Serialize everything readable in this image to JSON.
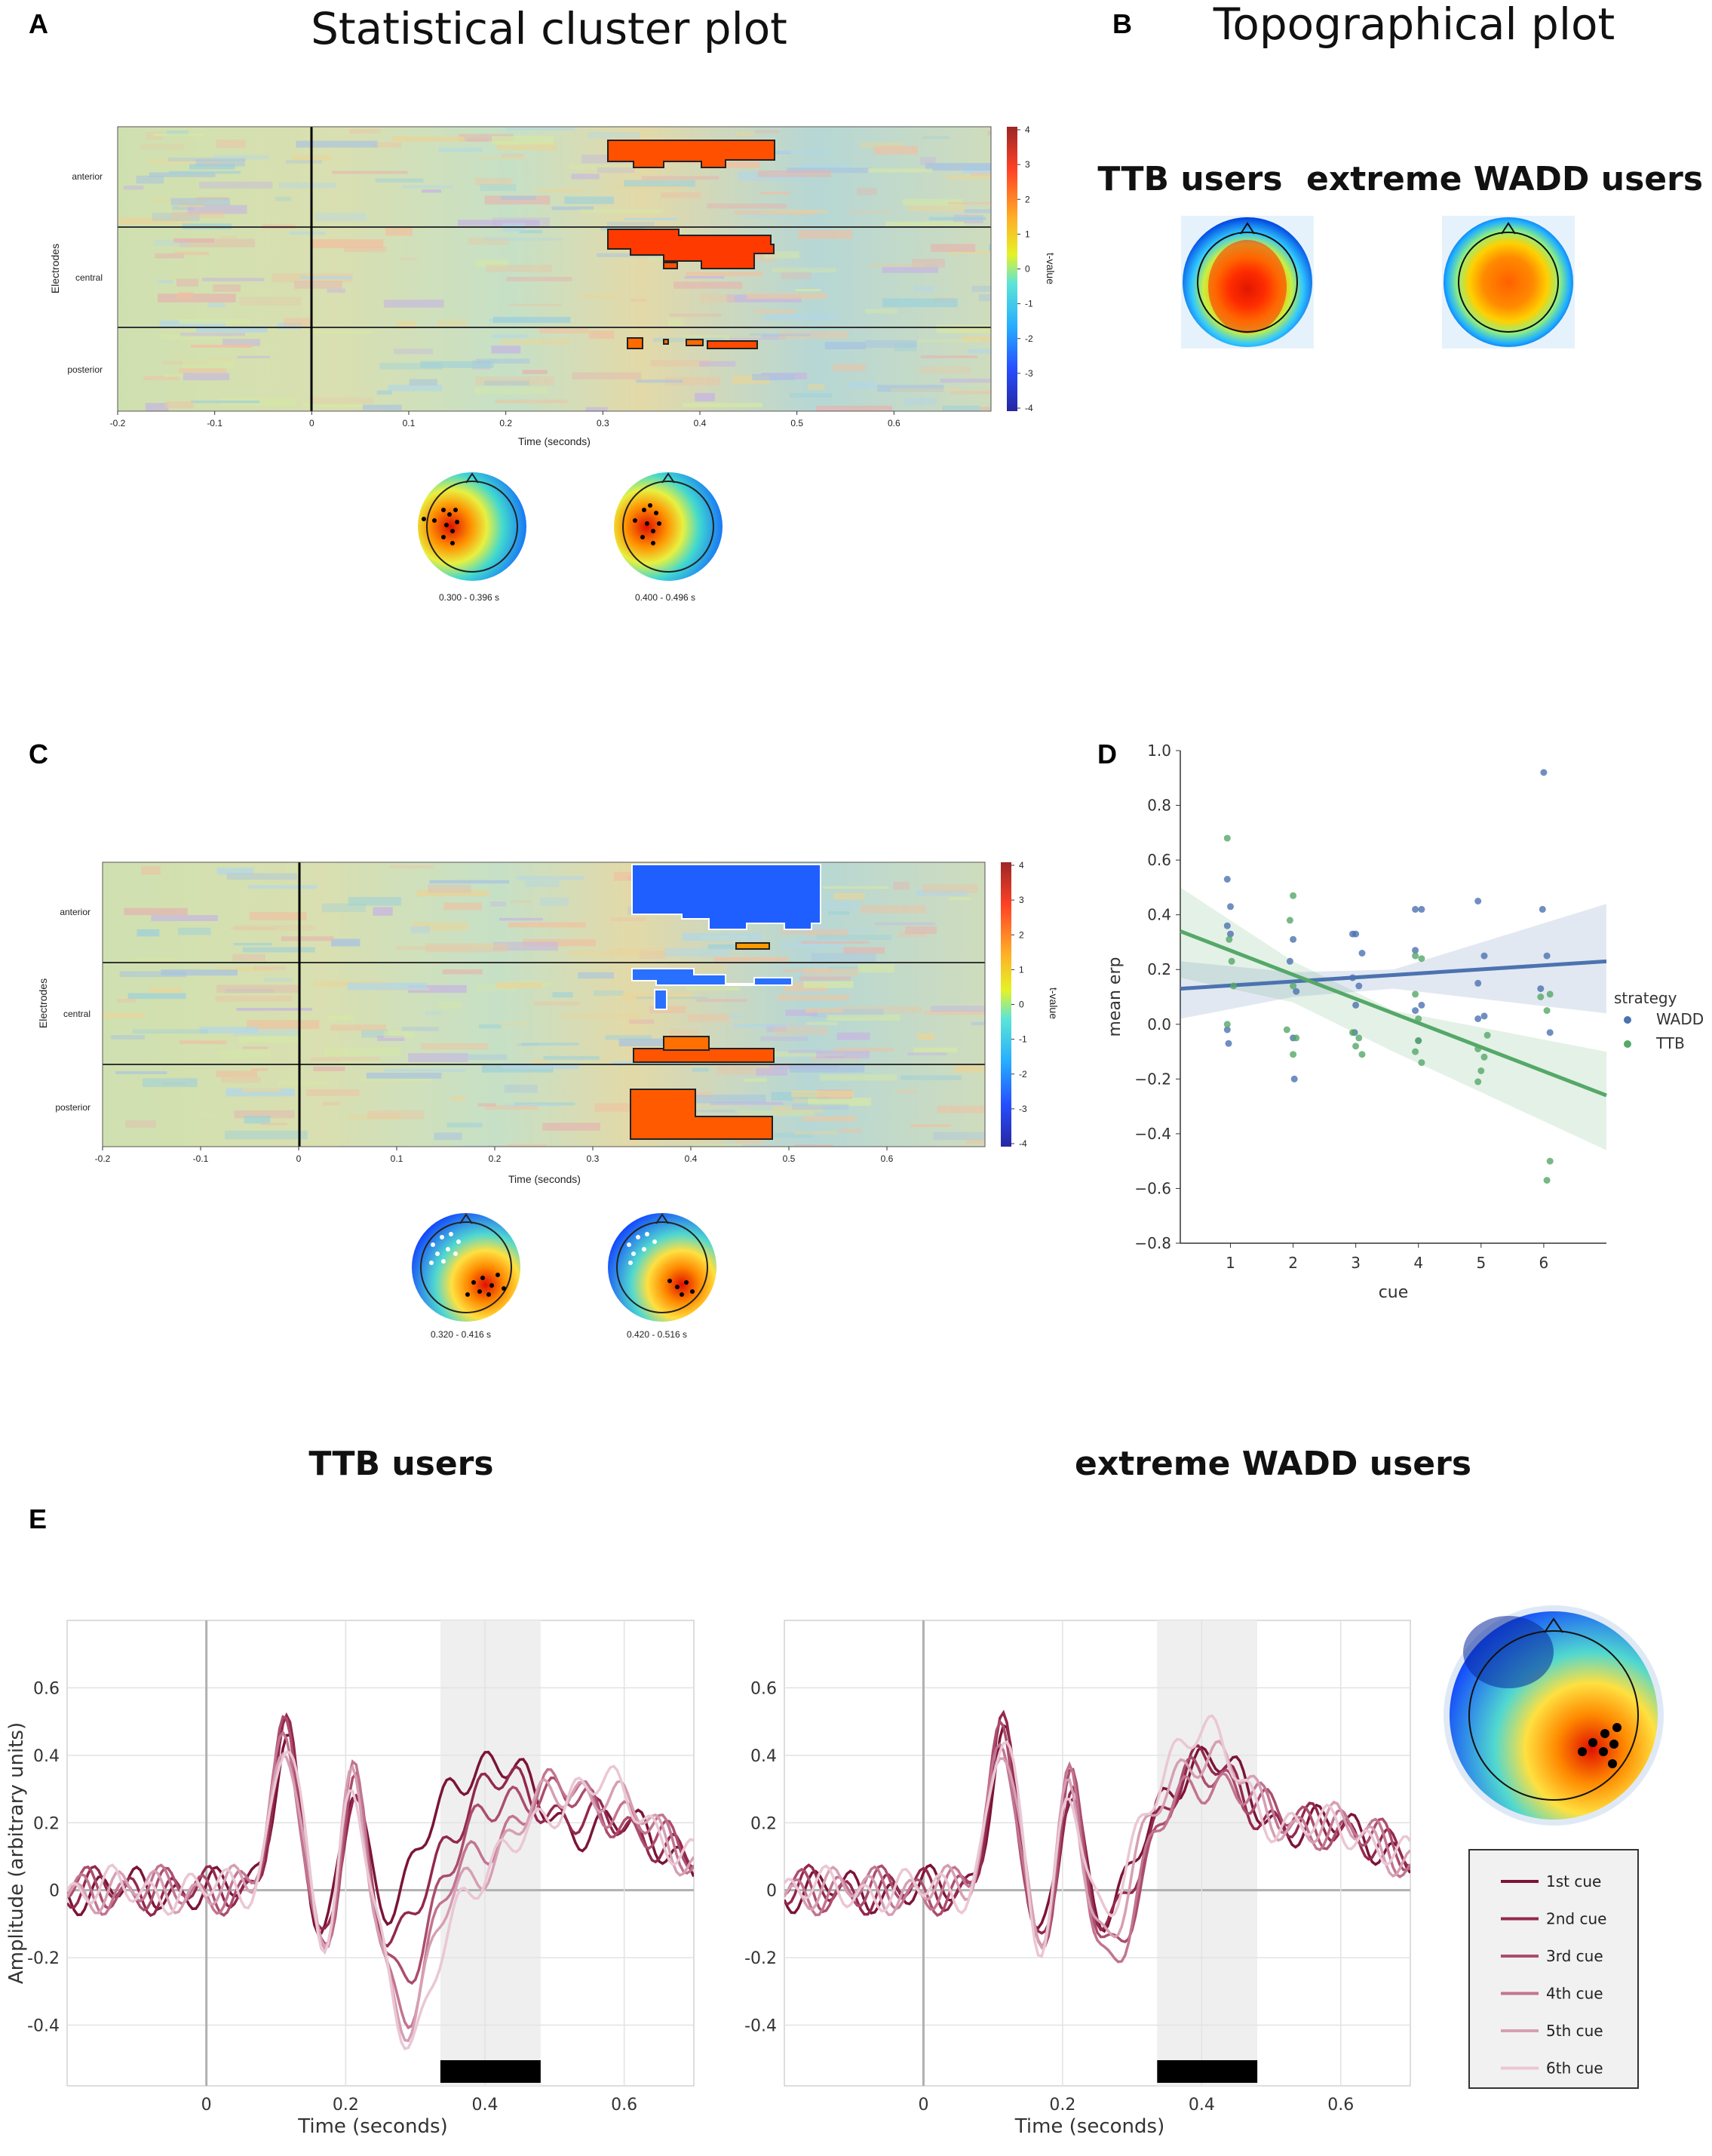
{
  "panels": {
    "A": {
      "letter": "A",
      "title": "Statistical cluster plot"
    },
    "B": {
      "letter": "B",
      "title": "Topographical plot",
      "left_label": "TTB users",
      "right_label": "extreme WADD users"
    },
    "C": {
      "letter": "C"
    },
    "D": {
      "letter": "D"
    },
    "E": {
      "letter": "E",
      "left_title": "TTB users",
      "right_title": "extreme WADD users"
    }
  },
  "cluster_plots": {
    "A": {
      "ylabel": "Electrodes",
      "xlabel": "Time (seconds)",
      "colorbar_label": "t-value",
      "row_labels": [
        "anterior",
        "central",
        "posterior"
      ],
      "xticks": [
        "-0.2",
        "-0.1",
        "0",
        "0.1",
        "0.2",
        "0.3",
        "0.4",
        "0.5",
        "0.6"
      ],
      "cticks": [
        "4",
        "3",
        "2",
        "1",
        "0",
        "-1",
        "-2",
        "-3",
        "-4"
      ],
      "topo_labels": [
        "0.300 - 0.396 s",
        "0.400 - 0.496 s"
      ]
    },
    "C": {
      "ylabel": "Electrodes",
      "xlabel": "Time (seconds)",
      "colorbar_label": "t-value",
      "row_labels": [
        "anterior",
        "central",
        "posterior"
      ],
      "xticks": [
        "-0.2",
        "-0.1",
        "0",
        "0.1",
        "0.2",
        "0.3",
        "0.4",
        "0.5",
        "0.6"
      ],
      "cticks": [
        "4",
        "3",
        "2",
        "1",
        "0",
        "-1",
        "-2",
        "-3",
        "-4"
      ],
      "topo_labels": [
        "0.320 - 0.416 s",
        "0.420 - 0.516 s"
      ]
    }
  },
  "chart_data": [
    {
      "panel": "D",
      "type": "scatter",
      "xlabel": "cue",
      "ylabel": "mean erp",
      "xlim": [
        0.2,
        7.0
      ],
      "ylim": [
        -0.8,
        1.0
      ],
      "xticks": [
        "1",
        "2",
        "3",
        "4",
        "5",
        "6"
      ],
      "yticks": [
        "1.0",
        "0.8",
        "0.6",
        "0.4",
        "0.2",
        "0.0",
        "−0.2",
        "−0.4",
        "−0.6",
        "−0.8"
      ],
      "legend_title": "strategy",
      "series": [
        {
          "name": "WADD",
          "color": "#4c72b0",
          "points": [
            [
              0.95,
              0.53
            ],
            [
              1.0,
              0.43
            ],
            [
              0.95,
              0.36
            ],
            [
              1.0,
              0.33
            ],
            [
              0.95,
              -0.02
            ],
            [
              0.97,
              -0.07
            ],
            [
              2.0,
              0.31
            ],
            [
              1.95,
              0.23
            ],
            [
              2.05,
              0.12
            ],
            [
              2.0,
              -0.05
            ],
            [
              2.02,
              -0.2
            ],
            [
              2.95,
              0.33
            ],
            [
              3.0,
              0.33
            ],
            [
              3.1,
              0.26
            ],
            [
              2.95,
              0.17
            ],
            [
              3.05,
              0.14
            ],
            [
              3.0,
              0.07
            ],
            [
              2.98,
              -0.03
            ],
            [
              3.95,
              0.42
            ],
            [
              4.05,
              0.42
            ],
            [
              3.95,
              0.27
            ],
            [
              4.05,
              0.07
            ],
            [
              3.95,
              0.05
            ],
            [
              4.0,
              -0.06
            ],
            [
              4.95,
              0.45
            ],
            [
              5.05,
              0.25
            ],
            [
              4.95,
              0.15
            ],
            [
              5.05,
              0.03
            ],
            [
              4.95,
              0.02
            ],
            [
              6.0,
              0.92
            ],
            [
              5.98,
              0.42
            ],
            [
              6.05,
              0.25
            ],
            [
              5.95,
              0.13
            ],
            [
              6.1,
              -0.03
            ]
          ],
          "fit": {
            "x": [
              0.2,
              7.0
            ],
            "y": [
              0.13,
              0.23
            ]
          }
        },
        {
          "name": "TTB",
          "color": "#55a868",
          "points": [
            [
              0.95,
              0.68
            ],
            [
              0.98,
              0.31
            ],
            [
              1.02,
              0.23
            ],
            [
              1.05,
              0.14
            ],
            [
              0.95,
              0.0
            ],
            [
              2.0,
              0.47
            ],
            [
              1.95,
              0.38
            ],
            [
              2.0,
              0.14
            ],
            [
              1.9,
              -0.02
            ],
            [
              2.05,
              -0.05
            ],
            [
              2.0,
              -0.11
            ],
            [
              2.95,
              -0.03
            ],
            [
              3.05,
              -0.05
            ],
            [
              3.0,
              -0.08
            ],
            [
              3.1,
              -0.11
            ],
            [
              3.95,
              0.25
            ],
            [
              4.05,
              0.24
            ],
            [
              3.95,
              0.11
            ],
            [
              4.0,
              0.02
            ],
            [
              4.0,
              -0.06
            ],
            [
              3.95,
              -0.1
            ],
            [
              4.05,
              -0.14
            ],
            [
              4.95,
              -0.09
            ],
            [
              5.05,
              -0.12
            ],
            [
              5.0,
              -0.17
            ],
            [
              4.95,
              -0.21
            ],
            [
              5.1,
              -0.04
            ],
            [
              5.95,
              0.1
            ],
            [
              6.1,
              0.11
            ],
            [
              6.05,
              0.05
            ],
            [
              6.1,
              -0.5
            ],
            [
              6.05,
              -0.57
            ]
          ],
          "fit": {
            "x": [
              0.2,
              7.0
            ],
            "y": [
              0.34,
              -0.26
            ]
          }
        }
      ]
    },
    {
      "panel": "E-left",
      "type": "line",
      "title": "TTB users",
      "xlabel": "Time (seconds)",
      "ylabel": "Amplitude (arbitrary units)",
      "xlim": [
        -0.2,
        0.7
      ],
      "ylim": [
        -0.58,
        0.8
      ],
      "xticks": [
        "0",
        "0.2",
        "0.4",
        "0.6"
      ],
      "yticks": [
        "0.6",
        "0.4",
        "0.2",
        "0",
        "-0.2",
        "-0.4"
      ],
      "shaded_window": [
        0.336,
        0.48
      ],
      "significance_bar": [
        0.336,
        0.48
      ]
    },
    {
      "panel": "E-right",
      "type": "line",
      "title": "extreme WADD users",
      "xlabel": "Time (seconds)",
      "ylabel": "",
      "xlim": [
        -0.2,
        0.7
      ],
      "ylim": [
        -0.58,
        0.8
      ],
      "xticks": [
        "0",
        "0.2",
        "0.4",
        "0.6"
      ],
      "yticks": [
        "0.6",
        "0.4",
        "0.2",
        "0",
        "-0.2",
        "-0.4"
      ],
      "shaded_window": [
        0.336,
        0.48
      ],
      "significance_bar": [
        0.336,
        0.48
      ]
    }
  ],
  "legend_e": {
    "entries": [
      {
        "label": "1st cue",
        "color": "#7b1437"
      },
      {
        "label": "2nd cue",
        "color": "#93284d"
      },
      {
        "label": "3rd cue",
        "color": "#ab4d6d"
      },
      {
        "label": "4th cue",
        "color": "#c27490"
      },
      {
        "label": "5th cue",
        "color": "#d69fb3"
      },
      {
        "label": "6th cue",
        "color": "#eac7d4"
      }
    ]
  }
}
